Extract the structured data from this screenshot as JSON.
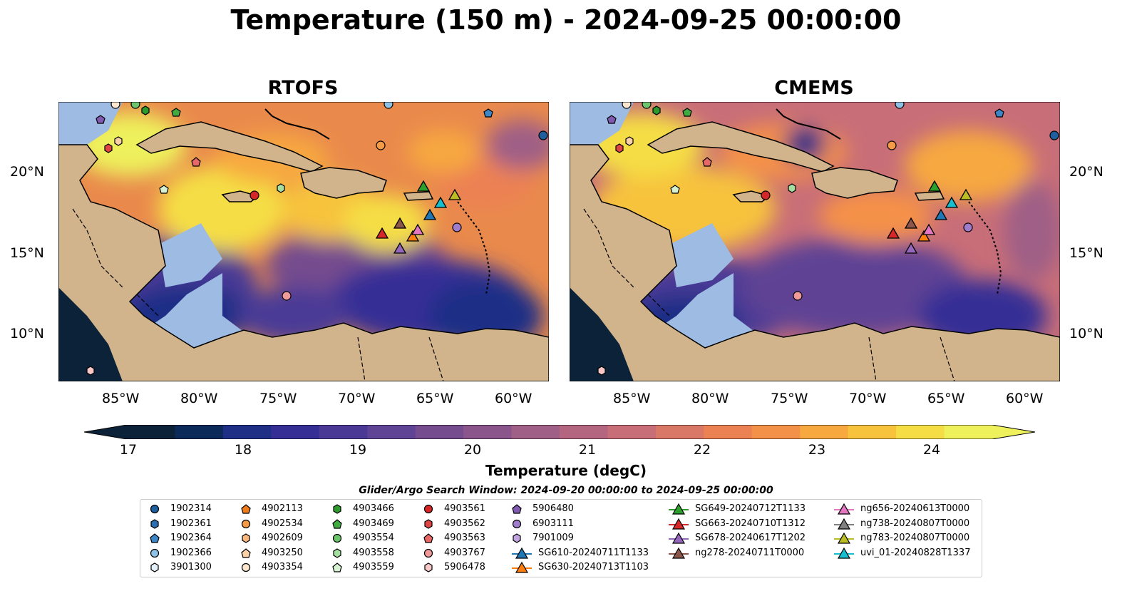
{
  "title": "Temperature (150 m) - 2024-09-25 00:00:00",
  "panels": [
    {
      "title": "RTOFS"
    },
    {
      "title": "CMEMS"
    }
  ],
  "lat_ticks": [
    "20°N",
    "15°N",
    "10°N"
  ],
  "lon_ticks": [
    "85°W",
    "80°W",
    "75°W",
    "70°W",
    "65°W",
    "60°W"
  ],
  "colorbar": {
    "label": "Temperature (degC)",
    "ticks": [
      "17",
      "18",
      "19",
      "20",
      "21",
      "22",
      "23",
      "24"
    ],
    "range": [
      17,
      24.5
    ],
    "colors": [
      "#0b2239",
      "#0c2a59",
      "#1f2f86",
      "#352e95",
      "#4a3a96",
      "#5f4394",
      "#754c8e",
      "#8a558a",
      "#9f5f86",
      "#b46681",
      "#c86e78",
      "#da7867",
      "#ec8153",
      "#f49149",
      "#f7a83f",
      "#f7c33c",
      "#f5de45",
      "#eef05c"
    ]
  },
  "search_window": "Glider/Argo Search Window: 2024-09-20 00:00:00 to 2024-09-25 00:00:00",
  "legend": [
    {
      "label": "1902314",
      "marker": "circle",
      "color": "#1f5f9e"
    },
    {
      "label": "1902361",
      "marker": "hexagon",
      "color": "#2c6fb0"
    },
    {
      "label": "1902364",
      "marker": "pentagon",
      "color": "#3c86c6"
    },
    {
      "label": "1902366",
      "marker": "circle",
      "color": "#8ec1e6"
    },
    {
      "label": "3901300",
      "marker": "hexagon",
      "color": "#e3f1fb"
    },
    {
      "label": "4902113",
      "marker": "pentagon",
      "color": "#f07c1a"
    },
    {
      "label": "4902534",
      "marker": "circle",
      "color": "#f59a45"
    },
    {
      "label": "4902609",
      "marker": "hexagon",
      "color": "#f8b77c"
    },
    {
      "label": "4903250",
      "marker": "pentagon",
      "color": "#fbd2a8"
    },
    {
      "label": "4903354",
      "marker": "circle",
      "color": "#fde6cf"
    },
    {
      "label": "4903466",
      "marker": "hexagon",
      "color": "#2c9a2c"
    },
    {
      "label": "4903469",
      "marker": "pentagon",
      "color": "#41ab41"
    },
    {
      "label": "4903554",
      "marker": "circle",
      "color": "#6cc56c"
    },
    {
      "label": "4903558",
      "marker": "hexagon",
      "color": "#a4dea0"
    },
    {
      "label": "4903559",
      "marker": "pentagon",
      "color": "#d6f2d2"
    },
    {
      "label": "4903561",
      "marker": "circle",
      "color": "#d62728"
    },
    {
      "label": "4903562",
      "marker": "hexagon",
      "color": "#e04545"
    },
    {
      "label": "4903563",
      "marker": "pentagon",
      "color": "#e86767"
    },
    {
      "label": "4903767",
      "marker": "circle",
      "color": "#f19a9a"
    },
    {
      "label": "5906478",
      "marker": "hexagon",
      "color": "#f8c7c7"
    },
    {
      "label": "5906480",
      "marker": "pentagon",
      "color": "#7f5aae"
    },
    {
      "label": "6903111",
      "marker": "circle",
      "color": "#a07ccc"
    },
    {
      "label": "7901009",
      "marker": "hexagon",
      "color": "#c1a4df"
    },
    {
      "label": "SG610-20240711T1133",
      "marker": "triangle-line",
      "color": "#1f77b4"
    },
    {
      "label": "SG630-20240713T1103",
      "marker": "triangle-line",
      "color": "#ff7f0e"
    },
    {
      "label": "SG649-20240712T1133",
      "marker": "triangle-line",
      "color": "#2ca02c"
    },
    {
      "label": "SG663-20240710T1312",
      "marker": "triangle-line",
      "color": "#d62728"
    },
    {
      "label": "SG678-20240617T1202",
      "marker": "triangle-line",
      "color": "#9467bd"
    },
    {
      "label": "ng278-20240711T0000",
      "marker": "triangle-line",
      "color": "#8c564b"
    },
    {
      "label": "ng656-20240613T0000",
      "marker": "triangle-line",
      "color": "#e377c2"
    },
    {
      "label": "ng738-20240807T0000",
      "marker": "triangle-line",
      "color": "#7f7f7f"
    },
    {
      "label": "ng783-20240807T0000",
      "marker": "triangle-line",
      "color": "#bcbd22"
    },
    {
      "label": "uvi_01-20240828T1337",
      "marker": "triangle-line",
      "color": "#17becf"
    }
  ],
  "colors": {
    "land": "#d2b48c",
    "shelf": "#9dbbe3",
    "deep_cold": "#0b2239"
  }
}
